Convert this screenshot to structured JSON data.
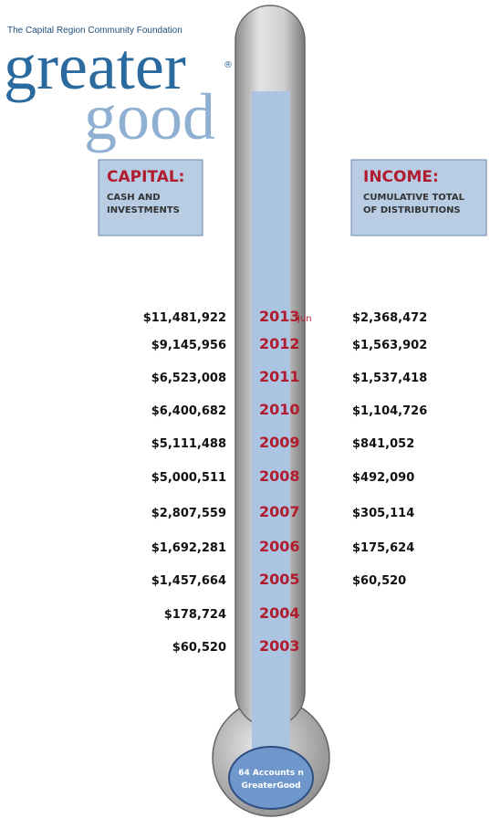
{
  "logo": {
    "organization": "The Capital Region Community Foundation",
    "word1": "greater",
    "mark": "®",
    "word2": "good"
  },
  "capital_box": {
    "title": "CAPITAL:",
    "lines": [
      "CASH AND",
      "INVESTMENTS"
    ]
  },
  "income_box": {
    "title": "INCOME:",
    "lines": [
      "CUMULATIVE TOTAL",
      "OF DISTRIBUTIONS"
    ]
  },
  "rows": [
    {
      "year": "2013",
      "note": "Jun",
      "capital": "$11,481,922",
      "income": "$2,368,472"
    },
    {
      "year": "2012",
      "capital": "$9,145,956",
      "income": "$1,563,902"
    },
    {
      "year": "2011",
      "capital": "$6,523,008",
      "income": "$1,537,418"
    },
    {
      "year": "2010",
      "capital": "$6,400,682",
      "income": "$1,104,726"
    },
    {
      "year": "2009",
      "capital": "$5,111,488",
      "income": "$841,052"
    },
    {
      "year": "2008",
      "capital": "$5,000,511",
      "income": "$492,090"
    },
    {
      "year": "2007",
      "capital": "$2,807,559",
      "income": "$305,114"
    },
    {
      "year": "2006",
      "capital": "$1,692,281",
      "income": "$175,624"
    },
    {
      "year": "2005",
      "capital": "$1,457,664",
      "income": "$60,520"
    },
    {
      "year": "2004",
      "capital": "$178,724"
    },
    {
      "year": "2003",
      "capital": "$60,520"
    }
  ],
  "bulb": {
    "lines": [
      "64 Accounts n",
      "GreaterGood"
    ]
  }
}
